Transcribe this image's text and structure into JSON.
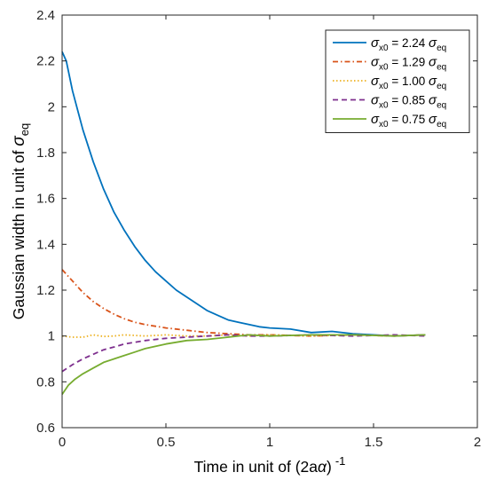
{
  "chart_data": {
    "type": "line",
    "xlabel": {
      "main": "Time in unit of (2a",
      "greek": "α",
      "close": ")",
      "sup": "-1"
    },
    "ylabel": {
      "main": "Gaussian width in unit of ",
      "greek": "σ",
      "sub": "eq"
    },
    "xlim": [
      0,
      2
    ],
    "ylim": [
      0.6,
      2.4
    ],
    "xticks": [
      "0",
      "0.5",
      "1",
      "1.5",
      "2"
    ],
    "yticks": [
      "0.6",
      "0.8",
      "1",
      "1.2",
      "1.4",
      "1.6",
      "1.8",
      "2",
      "2.2",
      "2.4"
    ],
    "xtick_values": [
      0,
      0.5,
      1,
      1.5,
      2
    ],
    "ytick_values": [
      0.6,
      0.8,
      1.0,
      1.2,
      1.4,
      1.6,
      1.8,
      2.0,
      2.2,
      2.4
    ],
    "grid": false,
    "legend_position": "top-right",
    "series": [
      {
        "name": "σx0 = 2.24 σeq",
        "legend": {
          "sym": "σ",
          "sub": "x0",
          "mid": " = 2.24 ",
          "sym2": "σ",
          "sub2": "eq"
        },
        "color": "#0072BD",
        "dash": "solid",
        "x": [
          0,
          0.02,
          0.05,
          0.1,
          0.15,
          0.2,
          0.25,
          0.3,
          0.35,
          0.4,
          0.45,
          0.5,
          0.55,
          0.6,
          0.65,
          0.7,
          0.75,
          0.8,
          0.85,
          0.9,
          0.95,
          1.0,
          1.1,
          1.2,
          1.3,
          1.4,
          1.5,
          1.6,
          1.75
        ],
        "y": [
          2.24,
          2.2,
          2.07,
          1.9,
          1.76,
          1.64,
          1.54,
          1.46,
          1.39,
          1.33,
          1.28,
          1.24,
          1.2,
          1.17,
          1.14,
          1.11,
          1.09,
          1.07,
          1.06,
          1.05,
          1.04,
          1.035,
          1.03,
          1.015,
          1.02,
          1.01,
          1.005,
          1.0,
          1.005
        ]
      },
      {
        "name": "σx0 = 1.29 σeq",
        "legend": {
          "sym": "σ",
          "sub": "x0",
          "mid": " = 1.29 ",
          "sym2": "σ",
          "sub2": "eq"
        },
        "color": "#D95319",
        "dash": "dashdot",
        "x": [
          0,
          0.05,
          0.1,
          0.15,
          0.2,
          0.25,
          0.3,
          0.35,
          0.4,
          0.5,
          0.6,
          0.7,
          0.8,
          0.9,
          1.0,
          1.2,
          1.4,
          1.6,
          1.75
        ],
        "y": [
          1.29,
          1.24,
          1.19,
          1.15,
          1.12,
          1.095,
          1.075,
          1.06,
          1.05,
          1.035,
          1.025,
          1.015,
          1.01,
          1.005,
          1.005,
          1.0,
          1.005,
          1.0,
          1.005
        ]
      },
      {
        "name": "σx0 = 1.00 σeq",
        "legend": {
          "sym": "σ",
          "sub": "x0",
          "mid": " = 1.00 ",
          "sym2": "σ",
          "sub2": "eq"
        },
        "color": "#EDB120",
        "dash": "dotted",
        "x": [
          0,
          0.05,
          0.1,
          0.15,
          0.2,
          0.25,
          0.3,
          0.4,
          0.5,
          0.6,
          0.7,
          0.8,
          0.9,
          1.0,
          1.2,
          1.4,
          1.6,
          1.75
        ],
        "y": [
          1.0,
          0.995,
          0.995,
          1.005,
          0.998,
          1.0,
          1.005,
          1.0,
          1.005,
          1.0,
          1.0,
          1.005,
          1.0,
          1.005,
          1.0,
          1.005,
          1.0,
          1.005
        ]
      },
      {
        "name": "σx0 = 0.85 σeq",
        "legend": {
          "sym": "σ",
          "sub": "x0",
          "mid": " = 0.85 ",
          "sym2": "σ",
          "sub2": "eq"
        },
        "color": "#7E2F8E",
        "dash": "dashed",
        "x": [
          0,
          0.05,
          0.1,
          0.15,
          0.2,
          0.25,
          0.3,
          0.4,
          0.5,
          0.6,
          0.7,
          0.8,
          0.9,
          1.0,
          1.2,
          1.4,
          1.6,
          1.75
        ],
        "y": [
          0.845,
          0.875,
          0.9,
          0.92,
          0.94,
          0.952,
          0.965,
          0.98,
          0.99,
          0.995,
          1.0,
          1.005,
          1.0,
          1.0,
          1.005,
          1.0,
          1.005,
          1.0
        ]
      },
      {
        "name": "σx0 = 0.75 σeq",
        "legend": {
          "sym": "σ",
          "sub": "x0",
          "mid": " = 0.75 ",
          "sym2": "σ",
          "sub2": "eq"
        },
        "color": "#77AC30",
        "dash": "solid",
        "x": [
          0,
          0.03,
          0.06,
          0.1,
          0.15,
          0.2,
          0.25,
          0.3,
          0.35,
          0.4,
          0.5,
          0.6,
          0.7,
          0.8,
          0.9,
          1.0,
          1.2,
          1.4,
          1.6,
          1.75
        ],
        "y": [
          0.745,
          0.785,
          0.81,
          0.835,
          0.86,
          0.885,
          0.9,
          0.915,
          0.93,
          0.945,
          0.965,
          0.98,
          0.985,
          0.995,
          1.005,
          1.0,
          1.005,
          1.005,
          1.0,
          1.005
        ]
      }
    ]
  }
}
